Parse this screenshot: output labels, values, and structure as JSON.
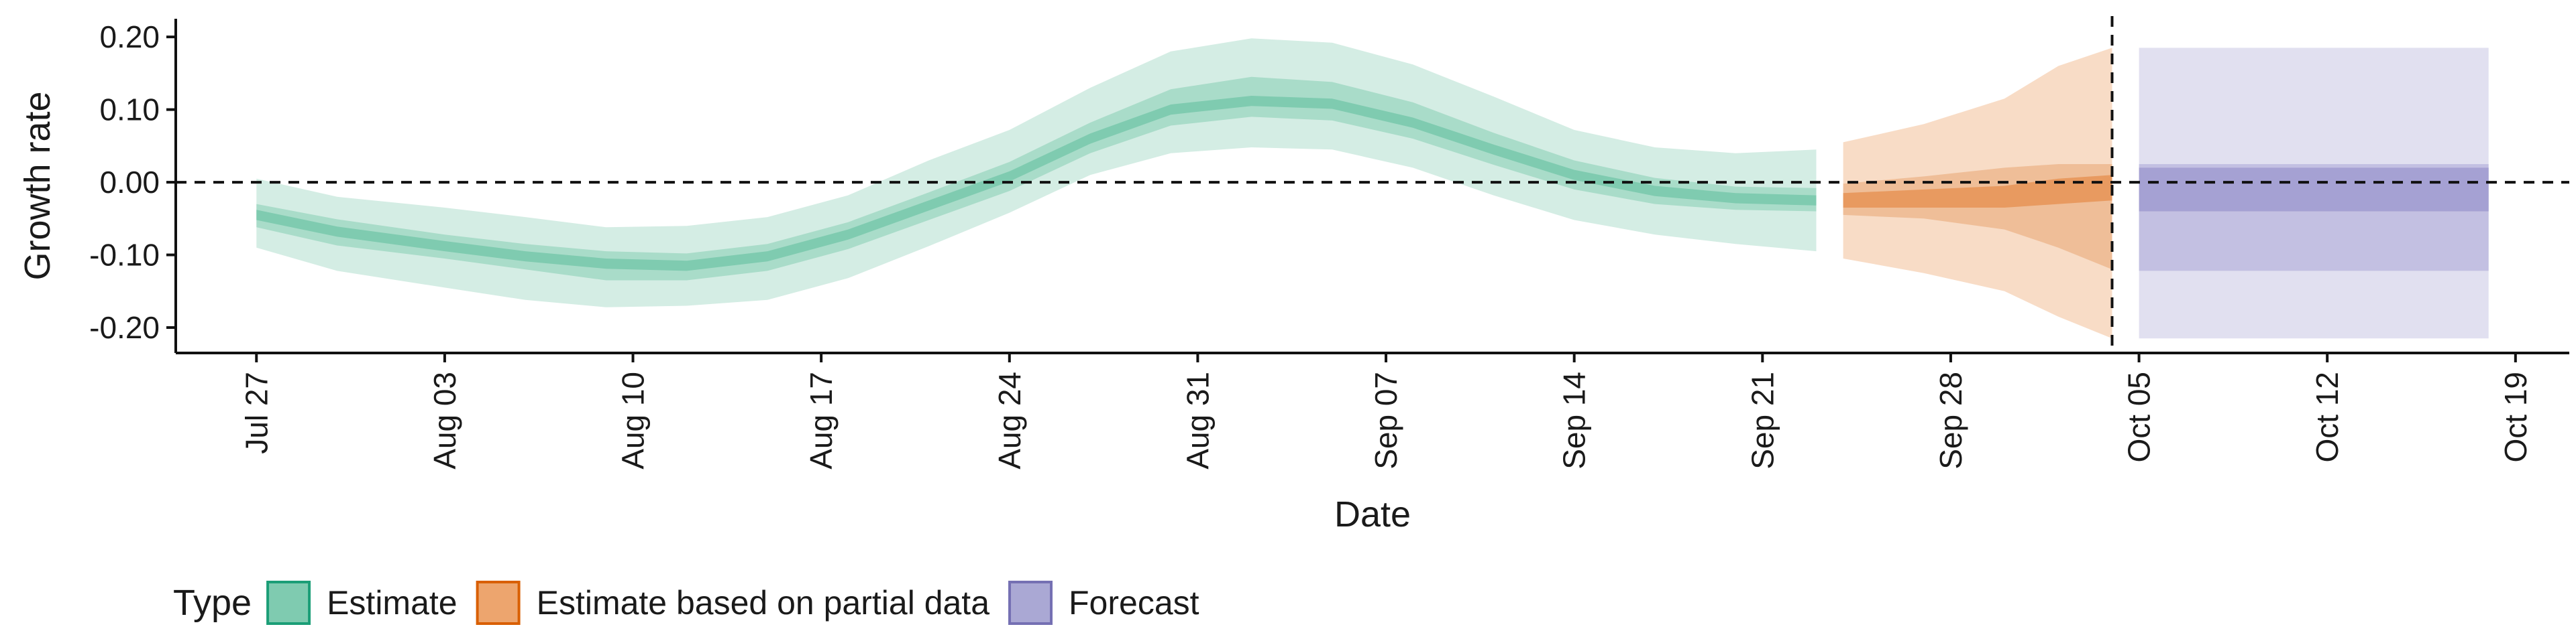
{
  "chart_data": {
    "type": "area",
    "xlabel": "Date",
    "ylabel": "Growth rate",
    "ylim": [
      -0.235,
      0.225
    ],
    "xlim": [
      "2020-07-24",
      "2020-10-21"
    ],
    "y_ticks": [
      {
        "value": -0.2,
        "label": "-0.20"
      },
      {
        "value": -0.1,
        "label": "-0.10"
      },
      {
        "value": 0.0,
        "label": "0.00"
      },
      {
        "value": 0.1,
        "label": "0.10"
      },
      {
        "value": 0.2,
        "label": "0.20"
      }
    ],
    "x_ticks": [
      {
        "date": "2020-07-27",
        "label": "Jul 27"
      },
      {
        "date": "2020-08-03",
        "label": "Aug 03"
      },
      {
        "date": "2020-08-10",
        "label": "Aug 10"
      },
      {
        "date": "2020-08-17",
        "label": "Aug 17"
      },
      {
        "date": "2020-08-24",
        "label": "Aug 24"
      },
      {
        "date": "2020-08-31",
        "label": "Aug 31"
      },
      {
        "date": "2020-09-07",
        "label": "Sep 07"
      },
      {
        "date": "2020-09-14",
        "label": "Sep 14"
      },
      {
        "date": "2020-09-21",
        "label": "Sep 21"
      },
      {
        "date": "2020-09-28",
        "label": "Sep 28"
      },
      {
        "date": "2020-10-05",
        "label": "Oct 05"
      },
      {
        "date": "2020-10-12",
        "label": "Oct 12"
      },
      {
        "date": "2020-10-19",
        "label": "Oct 19"
      }
    ],
    "reference_lines": {
      "horizontal_y": 0.0,
      "vertical_date": "2020-10-04",
      "style": "dashed"
    },
    "legend": {
      "title": "Type",
      "position": "bottom-left",
      "entries": [
        {
          "label": "Estimate",
          "fill": "#7fcbb0",
          "stroke": "#1b9e77"
        },
        {
          "label": "Estimate based on partial data",
          "fill": "#eda56e",
          "stroke": "#d95f02"
        },
        {
          "label": "Forecast",
          "fill": "#aaa8d4",
          "stroke": "#7570b3"
        }
      ]
    },
    "colors": {
      "Estimate": {
        "outer": "#d4ede4",
        "mid": "#a9dcc9",
        "inner": "#7fcbb0"
      },
      "Estimate based on partial data": {
        "outer": "#f8dcc6",
        "mid": "#efbe98",
        "inner": "#e89a60"
      },
      "Forecast": {
        "outer": "#e1e0f0",
        "mid": "#c3c0e2",
        "inner": "#a5a1d3"
      }
    },
    "series": [
      {
        "name": "Estimate",
        "points": [
          {
            "date": "2020-07-27",
            "median": -0.045,
            "lo90": -0.09,
            "hi90": 0.005,
            "lo50": -0.062,
            "hi50": -0.03,
            "lo20": -0.052,
            "hi20": -0.038
          },
          {
            "date": "2020-07-30",
            "median": -0.068,
            "lo90": -0.122,
            "hi90": -0.02,
            "lo50": -0.087,
            "hi50": -0.051,
            "lo20": -0.075,
            "hi20": -0.061
          },
          {
            "date": "2020-08-03",
            "median": -0.088,
            "lo90": -0.145,
            "hi90": -0.035,
            "lo50": -0.105,
            "hi50": -0.072,
            "lo20": -0.095,
            "hi20": -0.081
          },
          {
            "date": "2020-08-06",
            "median": -0.102,
            "lo90": -0.162,
            "hi90": -0.048,
            "lo50": -0.12,
            "hi50": -0.085,
            "lo20": -0.109,
            "hi20": -0.095
          },
          {
            "date": "2020-08-09",
            "median": -0.112,
            "lo90": -0.172,
            "hi90": -0.062,
            "lo50": -0.135,
            "hi50": -0.095,
            "lo20": -0.119,
            "hi20": -0.105
          },
          {
            "date": "2020-08-12",
            "median": -0.115,
            "lo90": -0.17,
            "hi90": -0.06,
            "lo50": -0.135,
            "hi50": -0.098,
            "lo20": -0.122,
            "hi20": -0.108
          },
          {
            "date": "2020-08-15",
            "median": -0.102,
            "lo90": -0.162,
            "hi90": -0.048,
            "lo50": -0.122,
            "hi50": -0.085,
            "lo20": -0.109,
            "hi20": -0.095
          },
          {
            "date": "2020-08-18",
            "median": -0.072,
            "lo90": -0.132,
            "hi90": -0.018,
            "lo50": -0.092,
            "hi50": -0.055,
            "lo20": -0.079,
            "hi20": -0.065
          },
          {
            "date": "2020-08-21",
            "median": -0.032,
            "lo90": -0.088,
            "hi90": 0.03,
            "lo50": -0.052,
            "hi50": -0.014,
            "lo20": -0.039,
            "hi20": -0.025
          },
          {
            "date": "2020-08-24",
            "median": 0.008,
            "lo90": -0.042,
            "hi90": 0.072,
            "lo50": -0.012,
            "hi50": 0.028,
            "lo20": 0.001,
            "hi20": 0.015
          },
          {
            "date": "2020-08-27",
            "median": 0.06,
            "lo90": 0.01,
            "hi90": 0.13,
            "lo50": 0.04,
            "hi50": 0.082,
            "lo20": 0.053,
            "hi20": 0.067
          },
          {
            "date": "2020-08-30",
            "median": 0.1,
            "lo90": 0.04,
            "hi90": 0.18,
            "lo50": 0.078,
            "hi50": 0.128,
            "lo20": 0.093,
            "hi20": 0.107
          },
          {
            "date": "2020-09-02",
            "median": 0.112,
            "lo90": 0.048,
            "hi90": 0.198,
            "lo50": 0.09,
            "hi50": 0.145,
            "lo20": 0.105,
            "hi20": 0.119
          },
          {
            "date": "2020-09-05",
            "median": 0.108,
            "lo90": 0.045,
            "hi90": 0.192,
            "lo50": 0.085,
            "hi50": 0.138,
            "lo20": 0.101,
            "hi20": 0.115
          },
          {
            "date": "2020-09-08",
            "median": 0.082,
            "lo90": 0.02,
            "hi90": 0.162,
            "lo50": 0.06,
            "hi50": 0.11,
            "lo20": 0.075,
            "hi20": 0.089
          },
          {
            "date": "2020-09-11",
            "median": 0.045,
            "lo90": -0.018,
            "hi90": 0.118,
            "lo50": 0.024,
            "hi50": 0.068,
            "lo20": 0.038,
            "hi20": 0.052
          },
          {
            "date": "2020-09-14",
            "median": 0.01,
            "lo90": -0.052,
            "hi90": 0.072,
            "lo50": -0.01,
            "hi50": 0.03,
            "lo20": 0.003,
            "hi20": 0.017
          },
          {
            "date": "2020-09-17",
            "median": -0.012,
            "lo90": -0.072,
            "hi90": 0.048,
            "lo50": -0.03,
            "hi50": 0.006,
            "lo20": -0.019,
            "hi20": -0.005
          },
          {
            "date": "2020-09-20",
            "median": -0.022,
            "lo90": -0.085,
            "hi90": 0.04,
            "lo50": -0.038,
            "hi50": -0.006,
            "lo20": -0.029,
            "hi20": -0.015
          },
          {
            "date": "2020-09-23",
            "median": -0.025,
            "lo90": -0.095,
            "hi90": 0.045,
            "lo50": -0.04,
            "hi50": -0.008,
            "lo20": -0.032,
            "hi20": -0.018
          }
        ]
      },
      {
        "name": "Estimate based on partial data",
        "points": [
          {
            "date": "2020-09-24",
            "median": -0.025,
            "lo90": -0.105,
            "hi90": 0.055,
            "lo50": -0.045,
            "hi50": -0.002,
            "lo20": -0.035,
            "hi20": -0.015
          },
          {
            "date": "2020-09-27",
            "median": -0.022,
            "lo90": -0.125,
            "hi90": 0.08,
            "lo50": -0.05,
            "hi50": 0.008,
            "lo20": -0.035,
            "hi20": -0.01
          },
          {
            "date": "2020-09-30",
            "median": -0.02,
            "lo90": -0.15,
            "hi90": 0.115,
            "lo50": -0.065,
            "hi50": 0.02,
            "lo20": -0.035,
            "hi20": -0.005
          },
          {
            "date": "2020-10-02",
            "median": -0.015,
            "lo90": -0.185,
            "hi90": 0.16,
            "lo50": -0.09,
            "hi50": 0.025,
            "lo20": -0.03,
            "hi20": 0.005
          },
          {
            "date": "2020-10-04",
            "median": -0.01,
            "lo90": -0.215,
            "hi90": 0.185,
            "lo50": -0.12,
            "hi50": 0.025,
            "lo20": -0.025,
            "hi20": 0.01
          }
        ]
      },
      {
        "name": "Forecast",
        "points": [
          {
            "date": "2020-10-05",
            "median": -0.008,
            "lo90": -0.215,
            "hi90": 0.185,
            "lo50": -0.122,
            "hi50": 0.025,
            "lo20": -0.04,
            "hi20": 0.02
          },
          {
            "date": "2020-10-18",
            "median": -0.008,
            "lo90": -0.215,
            "hi90": 0.185,
            "lo50": -0.122,
            "hi50": 0.025,
            "lo20": -0.04,
            "hi20": 0.02
          }
        ]
      }
    ]
  }
}
